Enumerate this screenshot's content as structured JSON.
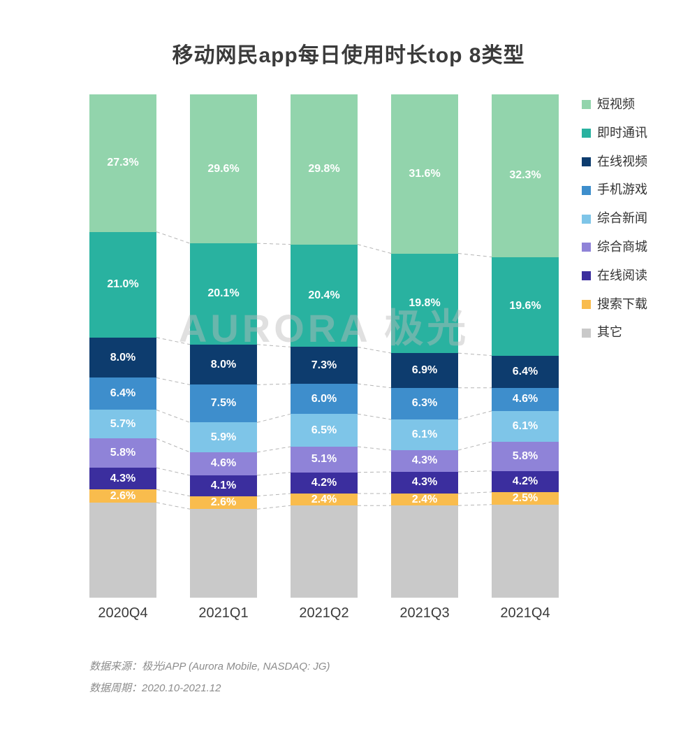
{
  "title": "移动网民app每日使用时长top 8类型",
  "watermark": "AURORA 极光",
  "footer": {
    "source": "数据来源：极光iAPP (Aurora Mobile, NASDAQ: JG)",
    "period": "数据周期：2020.10-2021.12"
  },
  "chart_data": {
    "type": "bar",
    "stacked": true,
    "percent_stacked": true,
    "unit": "%",
    "title": "移动网民app每日使用时长top 8类型",
    "categories": [
      "2020Q4",
      "2021Q1",
      "2021Q2",
      "2021Q3",
      "2021Q4"
    ],
    "series": [
      {
        "name": "短视频",
        "color": "#92d4ac",
        "values": [
          27.3,
          29.6,
          29.8,
          31.6,
          32.3
        ]
      },
      {
        "name": "即时通讯",
        "color": "#29b2a0",
        "values": [
          21.0,
          20.1,
          20.4,
          19.8,
          19.6
        ]
      },
      {
        "name": "在线视频",
        "color": "#0d3c6e",
        "values": [
          8.0,
          8.0,
          7.3,
          6.9,
          6.4
        ]
      },
      {
        "name": "手机游戏",
        "color": "#3e8ecc",
        "values": [
          6.4,
          7.5,
          6.0,
          6.3,
          4.6
        ]
      },
      {
        "name": "综合新闻",
        "color": "#7ec5e8",
        "values": [
          5.7,
          5.9,
          6.5,
          6.1,
          6.1
        ]
      },
      {
        "name": "综合商城",
        "color": "#8f83d8",
        "values": [
          5.8,
          4.6,
          5.1,
          4.3,
          5.8
        ]
      },
      {
        "name": "在线阅读",
        "color": "#3b2e9e",
        "values": [
          4.3,
          4.1,
          4.2,
          4.3,
          4.2
        ]
      },
      {
        "name": "搜索下载",
        "color": "#f9bc4d",
        "values": [
          2.6,
          2.6,
          2.4,
          2.4,
          2.5
        ]
      },
      {
        "name": "其它",
        "color": "#c9c9c9",
        "values": [
          18.9,
          17.6,
          18.3,
          18.3,
          18.5
        ],
        "labels_visible": false
      }
    ],
    "ylim": [
      0,
      100
    ],
    "grid": false,
    "legend_position": "right",
    "connector_lines": "dashed"
  }
}
